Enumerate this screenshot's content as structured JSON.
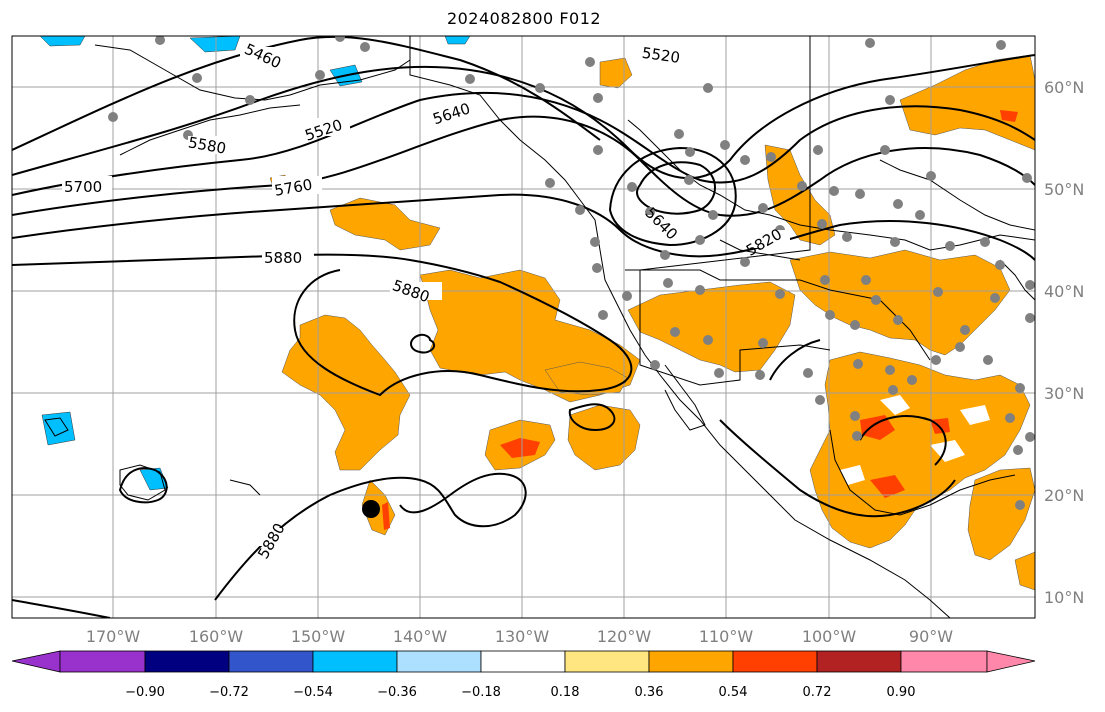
{
  "title": "2024082800 F012",
  "lon_labels": [
    "170°W",
    "160°W",
    "150°W",
    "140°W",
    "130°W",
    "120°W",
    "110°W",
    "100°W",
    "90°W"
  ],
  "lat_labels": [
    "60°N",
    "50°N",
    "40°N",
    "30°N",
    "20°N",
    "10°N"
  ],
  "contour_labels": [
    "5460",
    "5520",
    "5580",
    "5640",
    "5700",
    "5760",
    "5880",
    "5880",
    "5640",
    "5820",
    "5880",
    "5520"
  ],
  "colorbar": {
    "tick_labels": [
      "−0.90",
      "−0.72",
      "−0.54",
      "−0.36",
      "−0.18",
      "0.18",
      "0.36",
      "0.54",
      "0.72",
      "0.90"
    ],
    "colors": [
      "#9932CC",
      "#000080",
      "#3355CC",
      "#00BFFF",
      "#ADDFFF",
      "#FFFFFF",
      "#FFE680",
      "#FFA500",
      "#FF4000",
      "#B22222",
      "#FF88AA"
    ]
  }
}
